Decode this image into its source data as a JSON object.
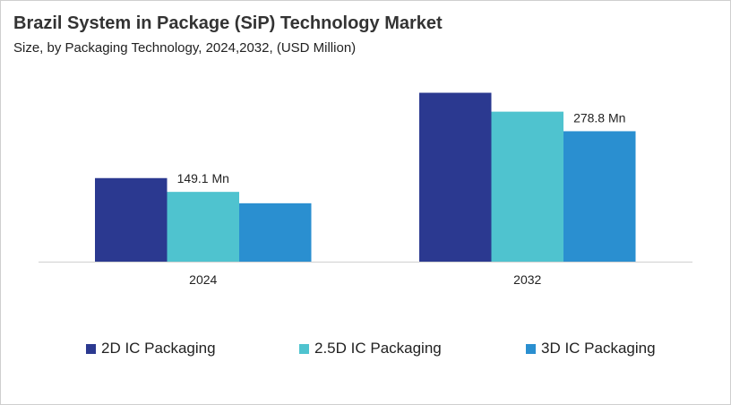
{
  "title": "Brazil System in Package (SiP) Technology Market",
  "subtitle": "Size, by Packaging Technology, 2024,2032, (USD Million)",
  "chart_data": {
    "type": "bar",
    "categories": [
      "2024",
      "2032"
    ],
    "series": [
      {
        "name": "2D IC Packaging",
        "values": [
          178.6,
          361.0
        ],
        "color": "#2b3990"
      },
      {
        "name": "2.5D IC Packaging",
        "values": [
          149.1,
          320.6
        ],
        "color": "#4fc3cf"
      },
      {
        "name": "3D IC Packaging",
        "values": [
          124.8,
          278.8
        ],
        "color": "#2a8fd0"
      }
    ],
    "data_labels": [
      {
        "category": "2024",
        "series": "2.5D IC Packaging",
        "text": "149.1 Mn"
      },
      {
        "category": "2032",
        "series": "3D IC Packaging",
        "text": "278.8 Mn"
      }
    ],
    "ylim": [
      0,
      385
    ],
    "grid": false,
    "legend": "bottom"
  }
}
